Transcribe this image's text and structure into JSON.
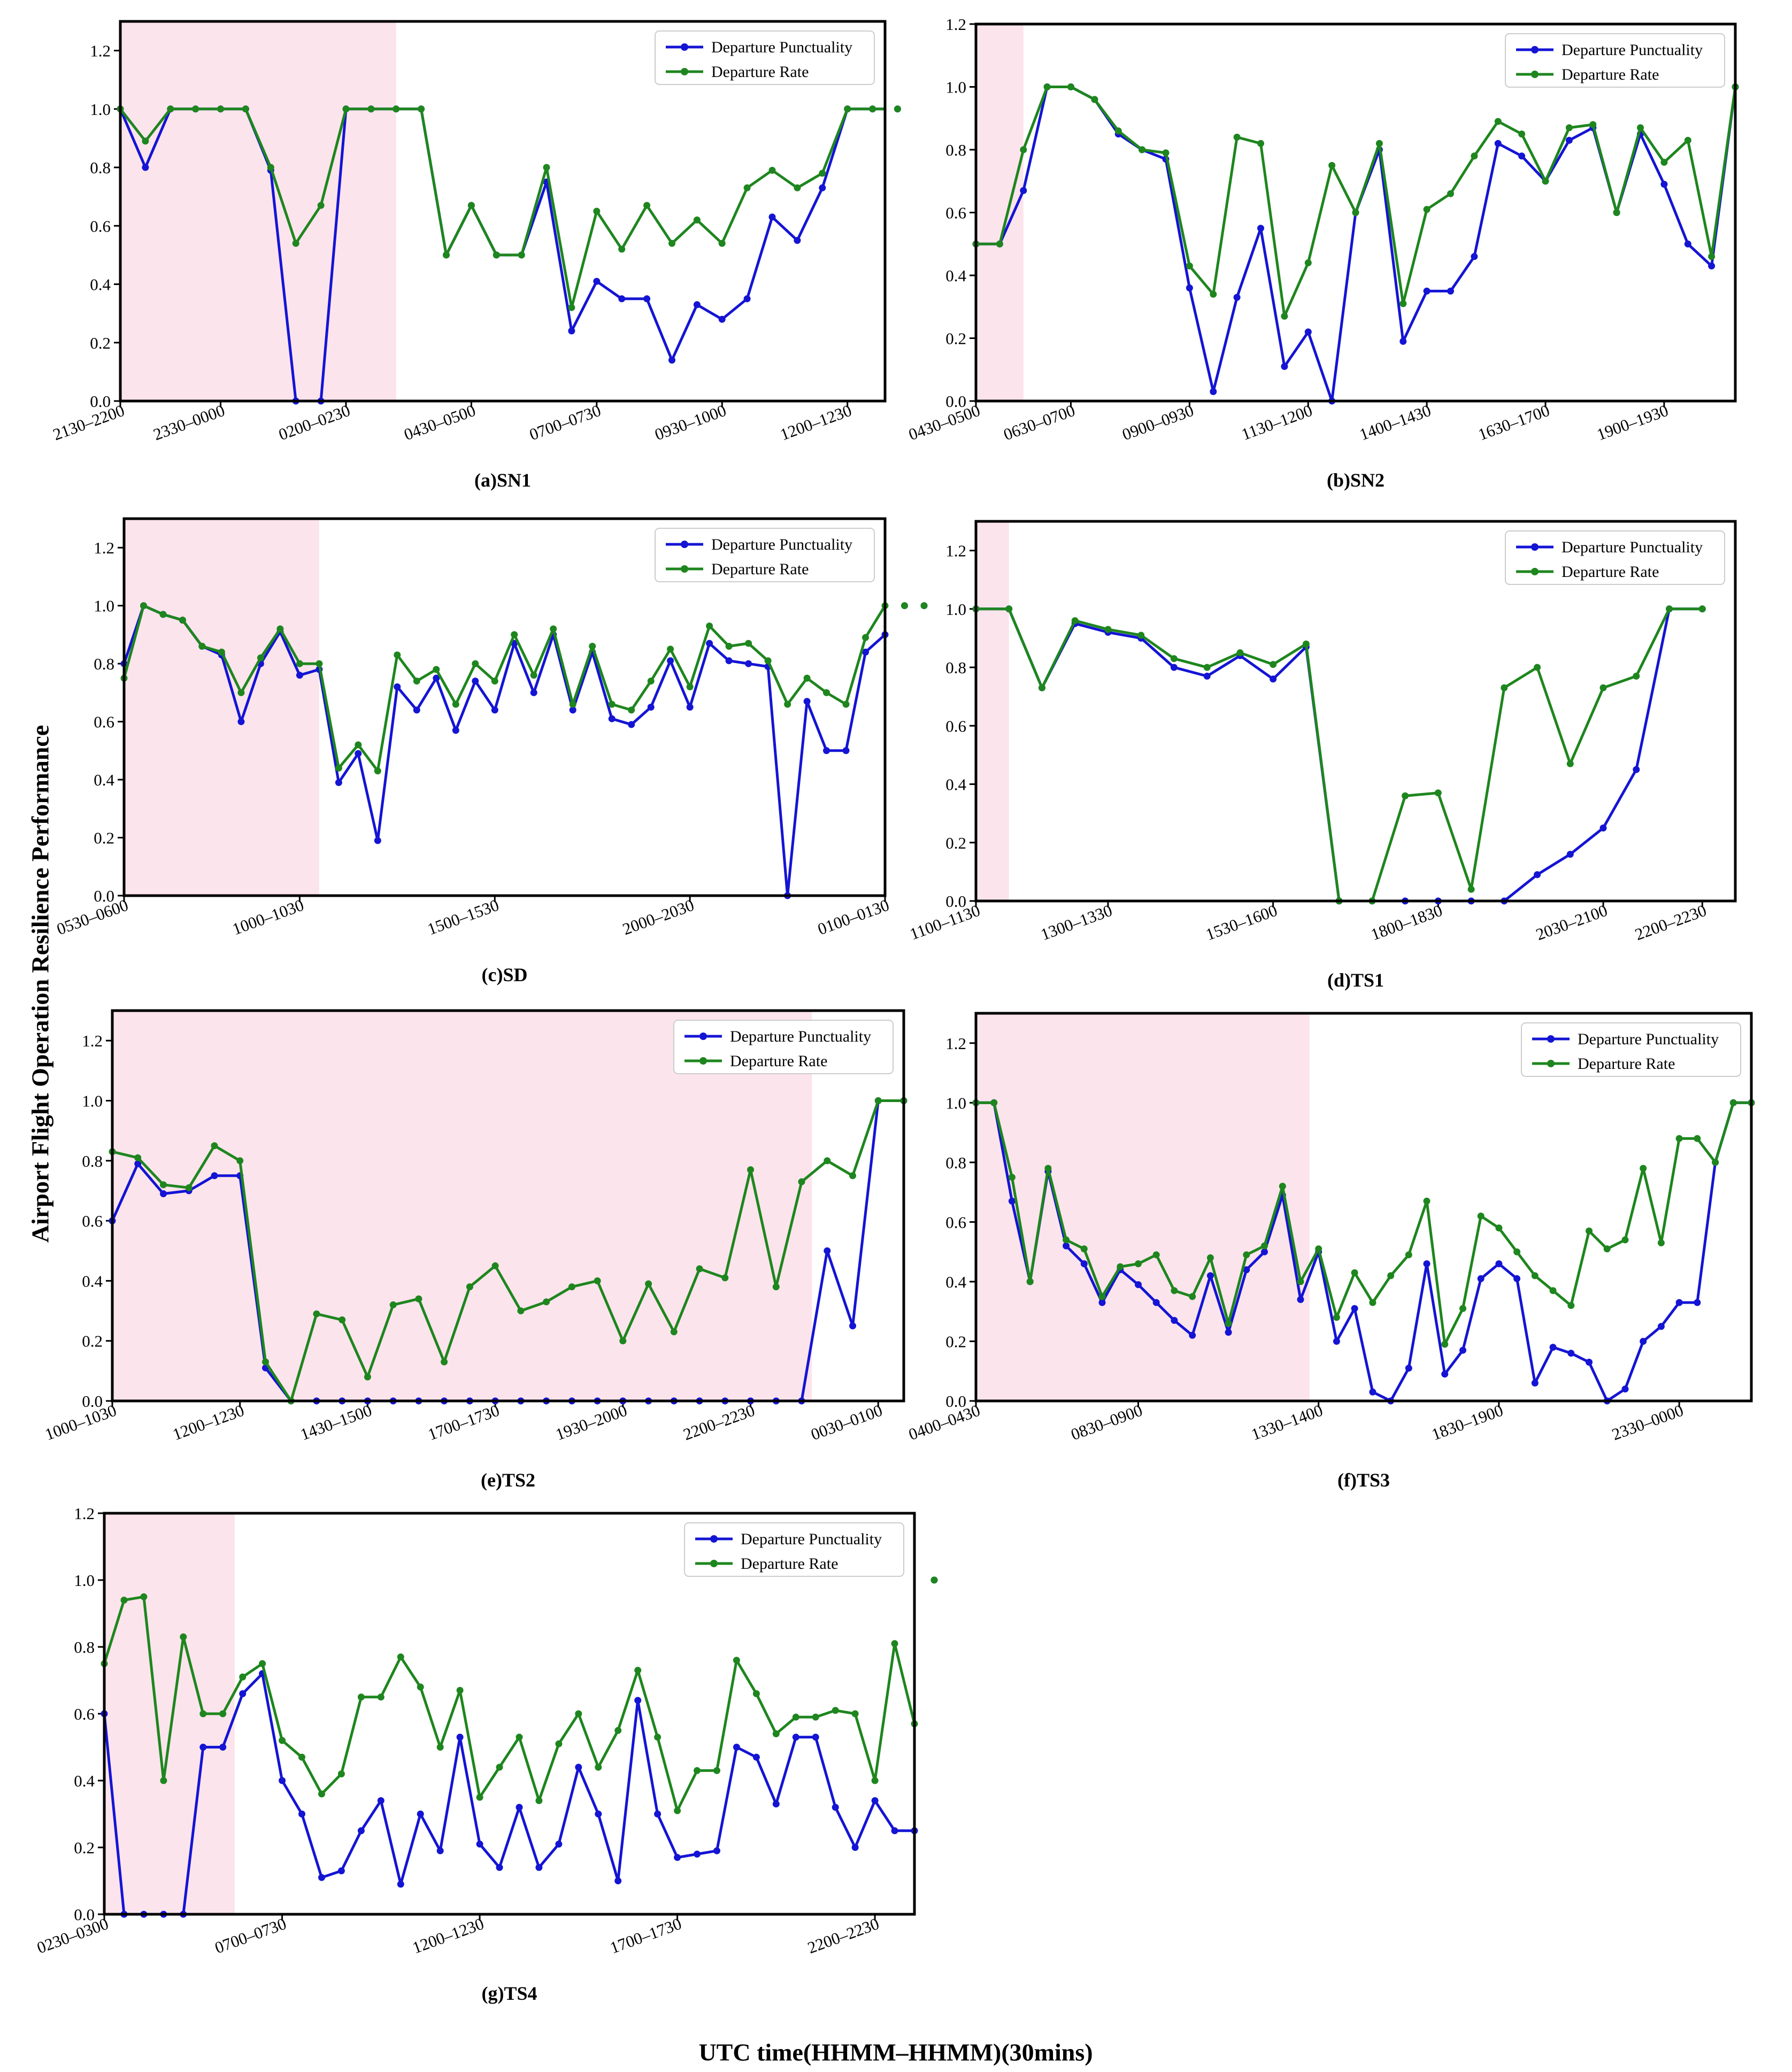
{
  "figure": {
    "y_axis_title": "Airport Flight  Operation Resilience  Performance",
    "x_axis_title": "UTC time(HHMM–HHMM)(30mins)"
  },
  "colors": {
    "punctuality": "#1414d4",
    "rate": "#1e861e",
    "disruption_shade": "#fce4ec"
  },
  "chart_data": [
    {
      "id": "sn1",
      "type": "line",
      "caption": "(a)SN1",
      "ylim": [
        0,
        1.3
      ],
      "yticks": [
        "0.0",
        "0.2",
        "0.4",
        "0.6",
        "0.8",
        "1.0",
        "1.2"
      ],
      "xticks": [
        {
          "i": 0,
          "label": "2130–2200"
        },
        {
          "i": 4,
          "label": "2330–0000"
        },
        {
          "i": 9,
          "label": "0200–0230"
        },
        {
          "i": 14,
          "label": "0430–0500"
        },
        {
          "i": 19,
          "label": "0700–0730"
        },
        {
          "i": 24,
          "label": "0930–1000"
        },
        {
          "i": 29,
          "label": "1200–1230"
        }
      ],
      "xmax": 30.5,
      "shade": [
        0,
        11
      ],
      "legend": [
        "Departure Punctuality",
        "Departure Rate"
      ],
      "series": [
        {
          "name": "Departure Punctuality",
          "values": [
            1.0,
            0.8,
            1.0,
            1.0,
            1.0,
            1.0,
            0.79,
            0.0,
            0.0,
            1.0,
            1.0,
            1.0,
            1.0,
            0.5,
            0.67,
            0.5,
            0.5,
            0.75,
            0.24,
            0.41,
            0.35,
            0.35,
            0.14,
            0.33,
            0.28,
            0.35,
            0.63,
            0.55,
            0.73,
            1.0,
            1.0,
            1.0
          ]
        },
        {
          "name": "Departure Rate",
          "values": [
            1.0,
            0.89,
            1.0,
            1.0,
            1.0,
            1.0,
            0.8,
            0.54,
            0.67,
            1.0,
            1.0,
            1.0,
            1.0,
            0.5,
            0.67,
            0.5,
            0.5,
            0.8,
            0.32,
            0.65,
            0.52,
            0.67,
            0.54,
            0.62,
            0.54,
            0.73,
            0.79,
            0.73,
            0.78,
            1.0,
            1.0,
            1.0
          ]
        }
      ]
    },
    {
      "id": "sn2",
      "type": "line",
      "caption": "(b)SN2",
      "ylim": [
        0,
        1.2
      ],
      "yticks": [
        "0.0",
        "0.2",
        "0.4",
        "0.6",
        "0.8",
        "1.0",
        "1.2"
      ],
      "xticks": [
        {
          "i": 0,
          "label": "0430–0500"
        },
        {
          "i": 4,
          "label": "0630–0700"
        },
        {
          "i": 9,
          "label": "0900–0930"
        },
        {
          "i": 14,
          "label": "1130–1200"
        },
        {
          "i": 19,
          "label": "1400–1430"
        },
        {
          "i": 24,
          "label": "1630–1700"
        },
        {
          "i": 29,
          "label": "1900–1930"
        }
      ],
      "xmax": 32,
      "shade": [
        0,
        2
      ],
      "legend": [
        "Departure Punctuality",
        "Departure Rate"
      ],
      "series": [
        {
          "name": "Departure Punctuality",
          "values": [
            0.5,
            0.5,
            0.67,
            1.0,
            1.0,
            0.96,
            0.85,
            0.8,
            0.77,
            0.36,
            0.03,
            0.33,
            0.55,
            0.11,
            0.22,
            0.0,
            0.6,
            0.8,
            0.19,
            0.35,
            0.35,
            0.46,
            0.82,
            0.78,
            0.7,
            0.83,
            0.87,
            0.6,
            0.85,
            0.69,
            0.5,
            0.43,
            1.0
          ]
        },
        {
          "name": "Departure Rate",
          "values": [
            0.5,
            0.5,
            0.8,
            1.0,
            1.0,
            0.96,
            0.86,
            0.8,
            0.79,
            0.43,
            0.34,
            0.84,
            0.82,
            0.27,
            0.44,
            0.75,
            0.6,
            0.82,
            0.31,
            0.61,
            0.66,
            0.78,
            0.89,
            0.85,
            0.7,
            0.87,
            0.88,
            0.6,
            0.87,
            0.76,
            0.83,
            0.46,
            1.0
          ]
        }
      ]
    },
    {
      "id": "sd",
      "type": "line",
      "caption": "(c)SD",
      "ylim": [
        0,
        1.3
      ],
      "yticks": [
        "0.0",
        "0.2",
        "0.4",
        "0.6",
        "0.8",
        "1.0",
        "1.2"
      ],
      "xticks": [
        {
          "i": 0,
          "label": "0530–0600"
        },
        {
          "i": 9,
          "label": "1000–1030"
        },
        {
          "i": 19,
          "label": "1500–1530"
        },
        {
          "i": 29,
          "label": "2000–2030"
        },
        {
          "i": 39,
          "label": "0100–0130"
        }
      ],
      "xmax": 39,
      "shade": [
        0,
        10
      ],
      "legend": [
        "Departure Punctuality",
        "Departure Rate"
      ],
      "series": [
        {
          "name": "Departure Punctuality",
          "values": [
            0.8,
            1.0,
            0.97,
            0.95,
            0.86,
            0.83,
            0.6,
            0.8,
            0.91,
            0.76,
            0.78,
            0.39,
            0.49,
            0.19,
            0.72,
            0.64,
            0.75,
            0.57,
            0.74,
            0.64,
            0.87,
            0.7,
            0.9,
            0.64,
            0.84,
            0.61,
            0.59,
            0.65,
            0.81,
            0.65,
            0.87,
            0.81,
            0.8,
            0.79,
            0.0,
            0.67,
            0.5,
            0.5,
            0.84,
            0.9,
            1.0,
            1.0
          ]
        },
        {
          "name": "Departure Rate",
          "values": [
            0.75,
            1.0,
            0.97,
            0.95,
            0.86,
            0.84,
            0.7,
            0.82,
            0.92,
            0.8,
            0.8,
            0.44,
            0.52,
            0.43,
            0.83,
            0.74,
            0.78,
            0.66,
            0.8,
            0.74,
            0.9,
            0.76,
            0.92,
            0.66,
            0.86,
            0.66,
            0.64,
            0.74,
            0.85,
            0.72,
            0.93,
            0.86,
            0.87,
            0.81,
            0.66,
            0.75,
            0.7,
            0.66,
            0.89,
            1.0,
            1.0,
            1.0
          ]
        }
      ]
    },
    {
      "id": "ts1",
      "type": "line",
      "caption": "(d)TS1",
      "ylim": [
        0,
        1.3
      ],
      "yticks": [
        "0.0",
        "0.2",
        "0.4",
        "0.6",
        "0.8",
        "1.0",
        "1.2"
      ],
      "xticks": [
        {
          "i": 0,
          "label": "1100–1130"
        },
        {
          "i": 4,
          "label": "1300–1330"
        },
        {
          "i": 9,
          "label": "1530–1600"
        },
        {
          "i": 14,
          "label": "1800–1830"
        },
        {
          "i": 19,
          "label": "2030–2100"
        },
        {
          "i": 22,
          "label": "2200–2230"
        }
      ],
      "xmax": 23,
      "shade": [
        0,
        1
      ],
      "legend": [
        "Departure Punctuality",
        "Departure Rate"
      ],
      "series": [
        {
          "name": "Departure Punctuality",
          "values": [
            1.0,
            1.0,
            0.73,
            0.95,
            0.92,
            0.9,
            0.8,
            0.77,
            0.84,
            0.76,
            0.87,
            0.0,
            0.0,
            0.0,
            0.0,
            0.0,
            0.0,
            0.09,
            0.16,
            0.25,
            0.45,
            1.0,
            1.0
          ]
        },
        {
          "name": "Departure Rate",
          "values": [
            1.0,
            1.0,
            0.73,
            0.96,
            0.93,
            0.91,
            0.83,
            0.8,
            0.85,
            0.81,
            0.88,
            0.0,
            0.0,
            0.36,
            0.37,
            0.04,
            0.73,
            0.8,
            0.47,
            0.73,
            0.77,
            1.0,
            1.0
          ]
        }
      ]
    },
    {
      "id": "ts2",
      "type": "line",
      "caption": "(e)TS2",
      "ylim": [
        0,
        1.3
      ],
      "yticks": [
        "0.0",
        "0.2",
        "0.4",
        "0.6",
        "0.8",
        "1.0",
        "1.2"
      ],
      "xticks": [
        {
          "i": 0,
          "label": "1000–1030"
        },
        {
          "i": 5,
          "label": "1200–1230"
        },
        {
          "i": 10,
          "label": "1430–1500"
        },
        {
          "i": 15,
          "label": "1700–1730"
        },
        {
          "i": 20,
          "label": "1930–2000"
        },
        {
          "i": 25,
          "label": "2200–2230"
        },
        {
          "i": 30,
          "label": "0030–0100"
        }
      ],
      "xmax": 31,
      "shade": [
        0,
        27.4
      ],
      "legend": [
        "Departure Punctuality",
        "Departure Rate"
      ],
      "series": [
        {
          "name": "Departure Punctuality",
          "values": [
            0.6,
            0.79,
            0.69,
            0.7,
            0.75,
            0.75,
            0.11,
            0.0,
            0.0,
            0.0,
            0.0,
            0.0,
            0.0,
            0.0,
            0.0,
            0.0,
            0.0,
            0.0,
            0.0,
            0.0,
            0.0,
            0.0,
            0.0,
            0.0,
            0.0,
            0.0,
            0.0,
            0.0,
            0.5,
            0.25,
            1.0,
            1.0
          ]
        },
        {
          "name": "Departure Rate",
          "values": [
            0.83,
            0.81,
            0.72,
            0.71,
            0.85,
            0.8,
            0.13,
            0.0,
            0.29,
            0.27,
            0.08,
            0.32,
            0.34,
            0.13,
            0.38,
            0.45,
            0.3,
            0.33,
            0.38,
            0.4,
            0.2,
            0.39,
            0.23,
            0.44,
            0.41,
            0.77,
            0.38,
            0.73,
            0.8,
            0.75,
            1.0,
            1.0
          ]
        }
      ]
    },
    {
      "id": "ts3",
      "type": "line",
      "caption": "(f)TS3",
      "ylim": [
        0,
        1.3
      ],
      "yticks": [
        "0.0",
        "0.2",
        "0.4",
        "0.6",
        "0.8",
        "1.0",
        "1.2"
      ],
      "xticks": [
        {
          "i": 0,
          "label": "0400–0430"
        },
        {
          "i": 9,
          "label": "0830–0900"
        },
        {
          "i": 19,
          "label": "1330–1400"
        },
        {
          "i": 29,
          "label": "1830–1900"
        },
        {
          "i": 39,
          "label": "2330–0000"
        }
      ],
      "xmax": 43,
      "shade": [
        0,
        18.5
      ],
      "legend": [
        "Departure Punctuality",
        "Departure Rate"
      ],
      "series": [
        {
          "name": "Departure Punctuality",
          "values": [
            1.0,
            1.0,
            0.67,
            0.4,
            0.77,
            0.52,
            0.46,
            0.33,
            0.44,
            0.39,
            0.33,
            0.27,
            0.22,
            0.42,
            0.23,
            0.44,
            0.5,
            0.69,
            0.34,
            0.5,
            0.2,
            0.31,
            0.03,
            0.0,
            0.11,
            0.46,
            0.09,
            0.17,
            0.41,
            0.46,
            0.41,
            0.06,
            0.18,
            0.16,
            0.13,
            0.0,
            0.04,
            0.2,
            0.25,
            0.33,
            0.33,
            0.8,
            1.0,
            1.0
          ]
        },
        {
          "name": "Departure Rate",
          "values": [
            1.0,
            1.0,
            0.75,
            0.4,
            0.78,
            0.54,
            0.51,
            0.35,
            0.45,
            0.46,
            0.49,
            0.37,
            0.35,
            0.48,
            0.26,
            0.49,
            0.52,
            0.72,
            0.4,
            0.51,
            0.28,
            0.43,
            0.33,
            0.42,
            0.49,
            0.67,
            0.19,
            0.31,
            0.62,
            0.58,
            0.5,
            0.42,
            0.37,
            0.32,
            0.57,
            0.51,
            0.54,
            0.78,
            0.53,
            0.88,
            0.88,
            0.8,
            1.0,
            1.0
          ]
        }
      ]
    },
    {
      "id": "ts4",
      "type": "line",
      "caption": "(g)TS4",
      "ylim": [
        0,
        1.2
      ],
      "yticks": [
        "0.0",
        "0.2",
        "0.4",
        "0.6",
        "0.8",
        "1.0",
        "1.2"
      ],
      "xticks": [
        {
          "i": 0,
          "label": "0230–0300"
        },
        {
          "i": 9,
          "label": "0700–0730"
        },
        {
          "i": 19,
          "label": "1200–1230"
        },
        {
          "i": 29,
          "label": "1700–1730"
        },
        {
          "i": 39,
          "label": "2200–2230"
        }
      ],
      "xmax": 41,
      "shade": [
        0,
        6.6
      ],
      "legend": [
        "Departure Punctuality",
        "Departure Rate"
      ],
      "series": [
        {
          "name": "Departure Punctuality",
          "values": [
            0.6,
            0.0,
            0.0,
            0.0,
            0.0,
            0.5,
            0.5,
            0.66,
            0.72,
            0.4,
            0.3,
            0.11,
            0.13,
            0.25,
            0.34,
            0.09,
            0.3,
            0.19,
            0.53,
            0.21,
            0.14,
            0.32,
            0.14,
            0.21,
            0.44,
            0.3,
            0.1,
            0.64,
            0.3,
            0.17,
            0.18,
            0.19,
            0.5,
            0.47,
            0.33,
            0.53,
            0.53,
            0.32,
            0.2,
            0.34,
            0.25,
            0.25,
            1.0
          ]
        },
        {
          "name": "Departure Rate",
          "values": [
            0.75,
            0.94,
            0.95,
            0.4,
            0.83,
            0.6,
            0.6,
            0.71,
            0.75,
            0.52,
            0.47,
            0.36,
            0.42,
            0.65,
            0.65,
            0.77,
            0.68,
            0.5,
            0.67,
            0.35,
            0.44,
            0.53,
            0.34,
            0.51,
            0.6,
            0.44,
            0.55,
            0.73,
            0.53,
            0.31,
            0.43,
            0.43,
            0.76,
            0.66,
            0.54,
            0.59,
            0.59,
            0.61,
            0.6,
            0.4,
            0.81,
            0.57,
            1.0
          ]
        }
      ]
    }
  ]
}
